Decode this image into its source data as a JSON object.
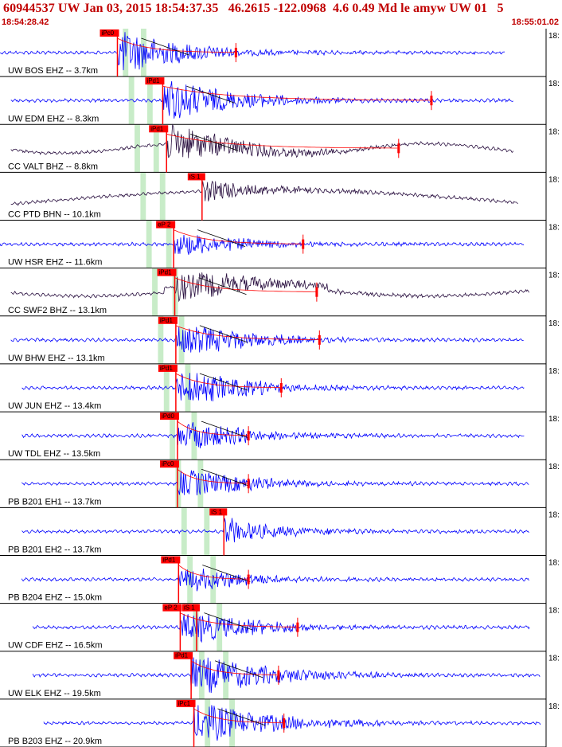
{
  "header": {
    "title": "60944537 UW Jan 03, 2015 18:54:37.35   46.2615 -122.0968  4.6 0.49 Md le amyw UW 01   5",
    "start_time": "18:54:28.42",
    "end_time": "18:55:01.02"
  },
  "chart_data": {
    "type": "line",
    "title": "60944537 UW Jan 03, 2015 18:54:37.35   46.2615 -122.0968  4.6 0.49 Md le amyw UW 01   5",
    "x_range": [
      "18:54:28.42",
      "18:55:01.02"
    ],
    "right_tick_label": "18:",
    "grid": false,
    "colors": {
      "blue": "#0000ff",
      "dark": "#2a1040",
      "pick": "#ff0000",
      "window": "#c8ecc8",
      "curve": "#000000"
    },
    "traces": [
      {
        "label": "UW BOS EHZ -- 3.7km",
        "color": "blue",
        "amp": 1.0,
        "pick": "iPc0",
        "pick_t": 0.215,
        "s_pick": "",
        "env_start": 0.22,
        "env_end": 0.42,
        "coda_t": 0.432,
        "trace_start": 0.0,
        "trace_end": 0.925,
        "long_period": 0
      },
      {
        "label": "UW EDM EHZ -- 8.3km",
        "color": "blue",
        "amp": 1.0,
        "pick": "iPd1",
        "pick_t": 0.298,
        "s_pick": "",
        "env_start": 0.3,
        "env_end": 0.62,
        "coda_t": 0.79,
        "trace_start": 0.02,
        "trace_end": 0.94,
        "long_period": 0
      },
      {
        "label": "CC VALT BHZ -- 8.8km",
        "color": "dark",
        "amp": 0.9,
        "pick": "iPd1",
        "pick_t": 0.305,
        "s_pick": "",
        "env_start": 0.31,
        "env_end": 0.62,
        "coda_t": 0.73,
        "trace_start": 0.02,
        "trace_end": 0.94,
        "long_period": 1
      },
      {
        "label": "CC PTD BHN -- 10.1km",
        "color": "dark",
        "amp": 0.5,
        "pick": "",
        "pick_t": 0.0,
        "s_pick": "iS 1",
        "env_start": 0.37,
        "env_end": 0.43,
        "coda_t": 0.0,
        "trace_start": 0.02,
        "trace_end": 0.95,
        "long_period": 2
      },
      {
        "label": "UW HSR EHZ -- 11.6km",
        "color": "blue",
        "amp": 0.55,
        "pick": "eP 2",
        "pick_t": 0.318,
        "s_pick": "",
        "env_start": 0.33,
        "env_end": 0.52,
        "coda_t": 0.555,
        "trace_start": 0.0,
        "trace_end": 0.96,
        "long_period": 0
      },
      {
        "label": "CC SWF2 BHZ -- 13.1km",
        "color": "dark",
        "amp": 0.8,
        "pick": "iPd1",
        "pick_t": 0.32,
        "s_pick": "",
        "env_start": 0.36,
        "env_end": 0.6,
        "coda_t": 0.58,
        "trace_start": 0.02,
        "trace_end": 0.97,
        "long_period": 3
      },
      {
        "label": "UW BHW EHZ -- 13.1km",
        "color": "blue",
        "amp": 0.8,
        "pick": "iPd1",
        "pick_t": 0.322,
        "s_pick": "",
        "env_start": 0.35,
        "env_end": 0.55,
        "coda_t": 0.585,
        "trace_start": 0.02,
        "trace_end": 0.96,
        "long_period": 0
      },
      {
        "label": "UW JUN EHZ -- 13.4km",
        "color": "blue",
        "amp": 0.9,
        "pick": "iPd1",
        "pick_t": 0.322,
        "s_pick": "",
        "env_start": 0.34,
        "env_end": 0.5,
        "coda_t": 0.515,
        "trace_start": 0.04,
        "trace_end": 0.96,
        "long_period": 0
      },
      {
        "label": "UW TDL EHZ -- 13.5km",
        "color": "blue",
        "amp": 0.7,
        "pick": "iPd0",
        "pick_t": 0.325,
        "s_pick": "",
        "env_start": 0.35,
        "env_end": 0.46,
        "coda_t": 0.455,
        "trace_start": 0.04,
        "trace_end": 0.96,
        "long_period": 0
      },
      {
        "label": "PB B201 EH1 -- 13.7km",
        "color": "blue",
        "amp": 0.7,
        "pick": "iPc0",
        "pick_t": 0.325,
        "s_pick": "",
        "env_start": 0.35,
        "env_end": 0.5,
        "coda_t": 0.455,
        "trace_start": 0.04,
        "trace_end": 0.97,
        "long_period": 0
      },
      {
        "label": "PB B201 EH2 -- 13.7km",
        "color": "blue",
        "amp": 0.6,
        "pick": "",
        "pick_t": 0.0,
        "s_pick": "iS 1",
        "env_start": 0.41,
        "env_end": 0.43,
        "coda_t": 0.0,
        "trace_start": 0.04,
        "trace_end": 0.97,
        "long_period": 0
      },
      {
        "label": "PB B204 EHZ -- 15.0km",
        "color": "blue",
        "amp": 0.6,
        "pick": "iPd1",
        "pick_t": 0.327,
        "s_pick": "",
        "env_start": 0.35,
        "env_end": 0.5,
        "coda_t": 0.455,
        "trace_start": 0.04,
        "trace_end": 0.97,
        "long_period": 0
      },
      {
        "label": "UW CDF EHZ -- 16.5km",
        "color": "blue",
        "amp": 0.8,
        "pick": "eP 2",
        "pick_t": 0.33,
        "s_pick": "iS 1",
        "env_start": 0.36,
        "env_end": 0.56,
        "coda_t": 0.545,
        "trace_start": 0.06,
        "trace_end": 0.97,
        "long_period": 0
      },
      {
        "label": "UW ELK EHZ -- 19.5km",
        "color": "blue",
        "amp": 1.0,
        "pick": "iPd1",
        "pick_t": 0.35,
        "s_pick": "",
        "env_start": 0.38,
        "env_end": 0.7,
        "coda_t": 0.51,
        "trace_start": 0.06,
        "trace_end": 0.99,
        "long_period": 0
      },
      {
        "label": "PB B203 EHZ -- 20.9km",
        "color": "blue",
        "amp": 1.0,
        "pick": "iPc1",
        "pick_t": 0.355,
        "s_pick": "",
        "env_start": 0.38,
        "env_end": 0.7,
        "coda_t": 0.52,
        "trace_start": 0.08,
        "trace_end": 0.99,
        "long_period": 0
      }
    ]
  }
}
